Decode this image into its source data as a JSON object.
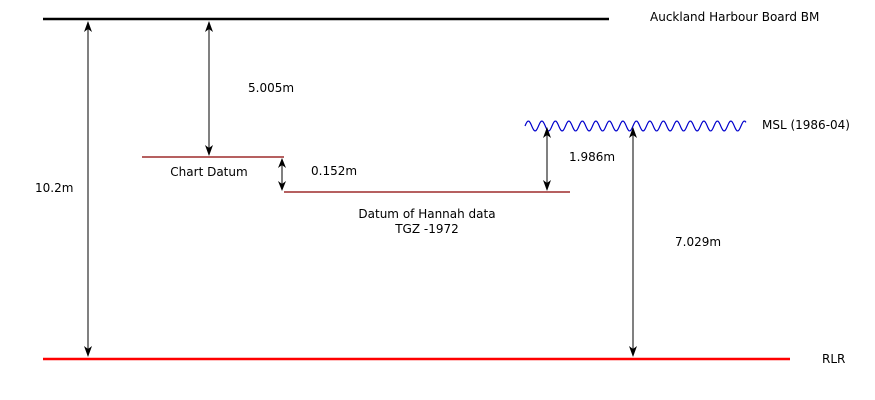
{
  "colors": {
    "line": "#000000",
    "datum": "#8b0000",
    "rlr": "#ff0000",
    "msl": "#0000cc"
  },
  "labels": {
    "benchmark": "Auckland Harbour Board BM",
    "msl": "MSL (1986-04)",
    "rlr": "RLR",
    "chart_datum": "Chart Datum",
    "hannah_line1": "Datum of Hannah data",
    "hannah_line2": "TGZ -1972"
  },
  "measurements": {
    "total": "10.2m",
    "bm_to_chart_datum": "5.005m",
    "chart_to_hannah": "0.152m",
    "msl_to_hannah": "1.986m",
    "msl_to_rlr": "7.029m"
  }
}
